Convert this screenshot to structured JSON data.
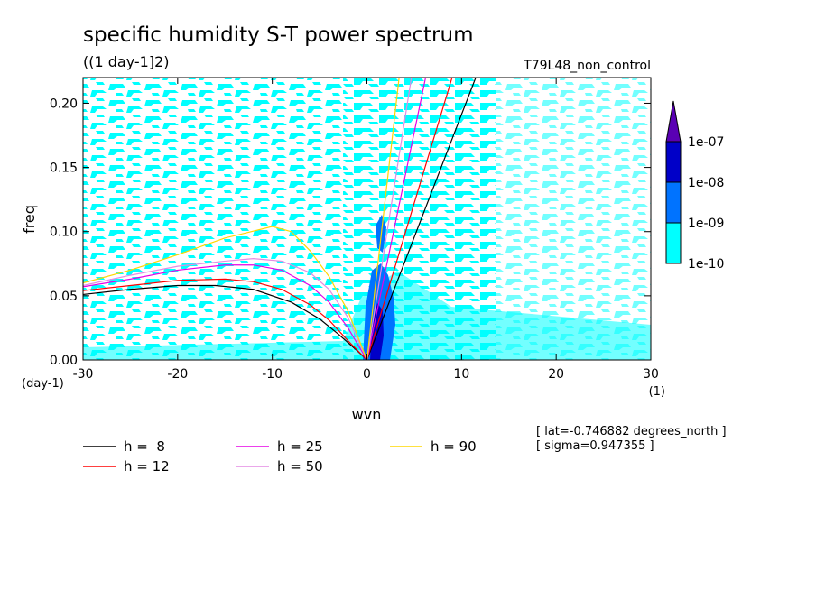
{
  "header": {
    "title": "specific humidity S-T power spectrum",
    "units": "((1 day-1]2)",
    "run_label": "T79L48_non_control"
  },
  "footer": {
    "lat_note": "[ lat=-0.746882 degrees_north ]",
    "sigma_note": "[ sigma=0.947355 ]"
  },
  "colors": {
    "level_1e-10_1e-09": "#00ffff",
    "level_1e-09_1e-08": "#0073ff",
    "level_1e-08_1e-07": "#0000c8",
    "level_above_1e-07": "#5a00b4",
    "h8": "#000000",
    "h12": "#ff0000",
    "h25": "#e600e6",
    "h50": "#e48ae4",
    "h90": "#ffd700"
  },
  "chart_data": {
    "type": "heatmap",
    "xlabel": "wvn",
    "ylabel": "freq",
    "x_unit": "(1)",
    "y_unit": "(day-1)",
    "xlim": [
      -30,
      30
    ],
    "ylim": [
      0,
      0.22
    ],
    "x_ticks": [
      -30,
      -20,
      -10,
      0,
      10,
      20,
      30
    ],
    "x_tick_labels": [
      "-30",
      "-20",
      "-10",
      "0",
      "10",
      "20",
      "30"
    ],
    "y_ticks": [
      0,
      0.05,
      0.1,
      0.15,
      0.2
    ],
    "y_tick_labels": [
      "0.00",
      "0.05",
      "0.10",
      "0.15",
      "0.20"
    ],
    "colorbar": {
      "levels": [
        "1e-10",
        "1e-09",
        "1e-08",
        "1e-07"
      ],
      "fills": [
        "#00ffff",
        "#0073ff",
        "#0000c8",
        "#5a00b4"
      ]
    },
    "series": [
      {
        "name": "h =  8",
        "color": "#000000",
        "kelvin": [
          [
            0,
            0
          ],
          [
            11.5,
            0.22
          ]
        ],
        "rossby": [
          [
            -30,
            0.051
          ],
          [
            -25,
            0.055
          ],
          [
            -20,
            0.058
          ],
          [
            -16,
            0.058
          ],
          [
            -12,
            0.055
          ],
          [
            -8,
            0.045
          ],
          [
            -5,
            0.032
          ],
          [
            -3,
            0.02
          ],
          [
            -1,
            0.007
          ],
          [
            0,
            0
          ]
        ]
      },
      {
        "name": "h = 12",
        "color": "#ff0000",
        "kelvin": [
          [
            0,
            0
          ],
          [
            9,
            0.22
          ]
        ],
        "rossby": [
          [
            -30,
            0.054
          ],
          [
            -25,
            0.058
          ],
          [
            -20,
            0.062
          ],
          [
            -15,
            0.063
          ],
          [
            -12,
            0.061
          ],
          [
            -9,
            0.055
          ],
          [
            -6,
            0.043
          ],
          [
            -4,
            0.031
          ],
          [
            -2,
            0.015
          ],
          [
            0,
            0
          ]
        ]
      },
      {
        "name": "h = 25",
        "color": "#e600e6",
        "kelvin": [
          [
            0,
            0
          ],
          [
            6.2,
            0.22
          ]
        ],
        "rossby": [
          [
            -30,
            0.057
          ],
          [
            -25,
            0.063
          ],
          [
            -20,
            0.07
          ],
          [
            -15,
            0.074
          ],
          [
            -12,
            0.074
          ],
          [
            -9,
            0.07
          ],
          [
            -6,
            0.058
          ],
          [
            -4,
            0.045
          ],
          [
            -2,
            0.025
          ],
          [
            0,
            0
          ]
        ]
      },
      {
        "name": "h = 50",
        "color": "#e48ae4",
        "kelvin": [
          [
            0,
            0
          ],
          [
            4.7,
            0.22
          ]
        ],
        "rossby": [
          [
            -30,
            0.058
          ],
          [
            -25,
            0.066
          ],
          [
            -20,
            0.073
          ],
          [
            -15,
            0.077
          ],
          [
            -12,
            0.079
          ],
          [
            -9,
            0.077
          ],
          [
            -6,
            0.068
          ],
          [
            -4,
            0.055
          ],
          [
            -2,
            0.033
          ],
          [
            0,
            0
          ]
        ]
      },
      {
        "name": "h = 90",
        "color": "#ffd700",
        "kelvin": [
          [
            0,
            0
          ],
          [
            3.4,
            0.22
          ]
        ],
        "rossby": [
          [
            -30,
            0.06
          ],
          [
            -25,
            0.07
          ],
          [
            -20,
            0.082
          ],
          [
            -15,
            0.095
          ],
          [
            -10,
            0.104
          ],
          [
            -8,
            0.1
          ],
          [
            -6,
            0.085
          ],
          [
            -4,
            0.065
          ],
          [
            -2,
            0.038
          ],
          [
            0,
            0
          ]
        ]
      }
    ]
  }
}
